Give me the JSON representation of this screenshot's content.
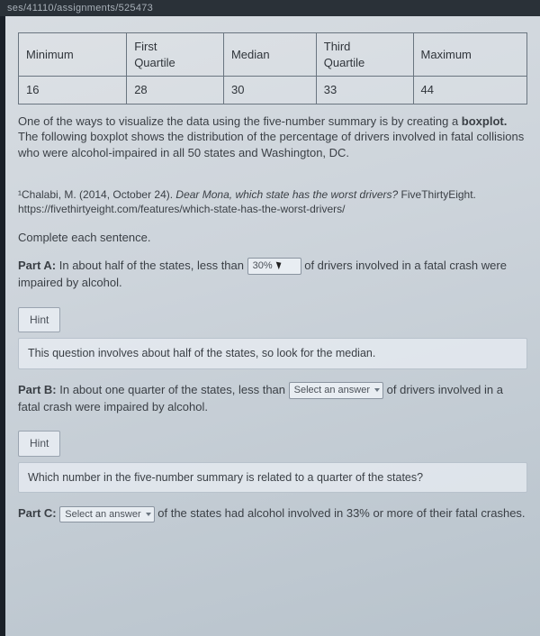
{
  "url_bar": "ses/41110/assignments/525473",
  "table": {
    "headers": [
      "Minimum",
      "First\nQuartile",
      "Median",
      "Third\nQuartile",
      "Maximum"
    ],
    "values": [
      "16",
      "28",
      "30",
      "33",
      "44"
    ]
  },
  "intro_para": "One of the ways to visualize the data using the five-number summary is by creating a ",
  "intro_bold": "boxplot.",
  "intro_rest": " The following boxplot shows the distribution of the percentage of drivers involved in fatal collisions who were alcohol-impaired in all 50 states and Washington, DC.",
  "citation_pre": "¹Chalabi, M. (2014, October 24). ",
  "citation_ital": "Dear Mona, which state has the worst drivers?",
  "citation_post": " FiveThirtyEight. https://fivethirtyeight.com/features/which-state-has-the-worst-drivers/",
  "complete": "Complete each sentence.",
  "partA_label": "Part A:",
  "partA_pre": " In about half of the states, less than ",
  "partA_select": "30%",
  "partA_post": " of drivers involved in a fatal crash were impaired by alcohol.",
  "hint_label": "Hint",
  "hintA_body": "This question involves about half of the states, so look for the median.",
  "partB_label": "Part B:",
  "partB_pre": " In about one quarter of the states, less than ",
  "partB_select": "Select an answer",
  "partB_post": " of drivers involved in a fatal crash were impaired by alcohol.",
  "hintB_body": "Which number in the five-number summary is related to a quarter of the states?",
  "partC_label": "Part C:",
  "partC_select": "Select an answer",
  "partC_post": " of the states had alcohol involved in 33% or more of their fatal crashes."
}
